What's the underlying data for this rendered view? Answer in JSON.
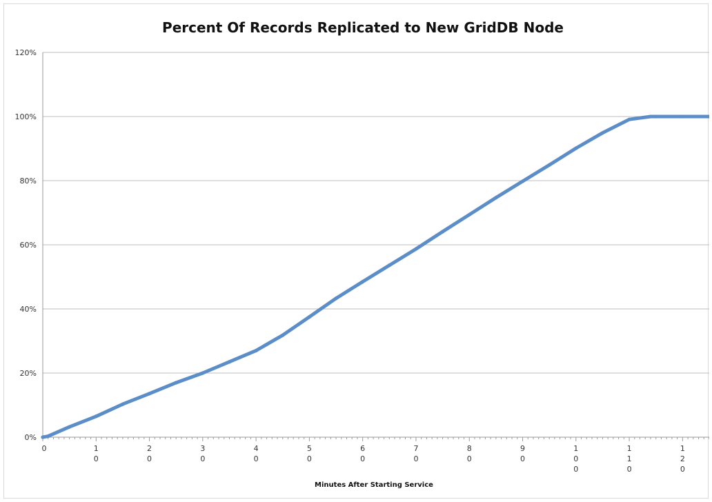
{
  "chart_data": {
    "type": "line",
    "title": "Percent Of Records Replicated to New GridDB Node",
    "xlabel": "Minutes After Starting Service",
    "ylabel": "",
    "xlim": [
      0,
      125
    ],
    "ylim": [
      0,
      120
    ],
    "grid": "horizontal",
    "legend": "none",
    "y_ticks": [
      0,
      20,
      40,
      60,
      80,
      100,
      120
    ],
    "y_tick_labels": [
      "0%",
      "20%",
      "40%",
      "60%",
      "80%",
      "100%",
      "120%"
    ],
    "x_ticks": [
      0,
      10,
      20,
      30,
      40,
      50,
      60,
      70,
      80,
      90,
      100,
      110,
      120
    ],
    "x_tick_labels": [
      "0",
      "1\n0",
      "2\n0",
      "3\n0",
      "4\n0",
      "5\n0",
      "6\n0",
      "7\n0",
      "8\n0",
      "9\n0",
      "1\n0\n0",
      "1\n1\n0",
      "1\n2\n0"
    ],
    "series": [
      {
        "color": "#5b8ec9",
        "x": [
          0,
          1,
          5,
          10,
          15,
          20,
          25,
          30,
          35,
          40,
          45,
          50,
          55,
          60,
          65,
          70,
          75,
          80,
          85,
          90,
          95,
          100,
          105,
          110,
          114,
          115,
          120,
          125
        ],
        "y": [
          0,
          0.3,
          3.2,
          6.5,
          10.3,
          13.6,
          17,
          20,
          23.5,
          27,
          31.8,
          37.5,
          43.3,
          48.5,
          53.6,
          58.7,
          64.1,
          69.4,
          74.7,
          79.8,
          84.9,
          90.1,
          94.9,
          99.1,
          100,
          100,
          100,
          100
        ]
      }
    ]
  }
}
